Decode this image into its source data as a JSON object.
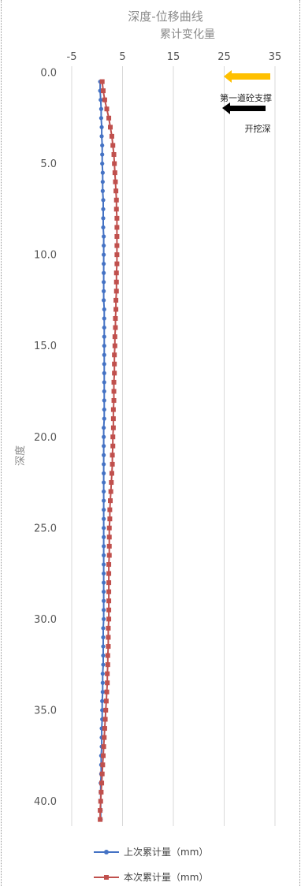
{
  "chart_data": {
    "type": "line",
    "title": "深度-位移曲线",
    "xlabel": "累计变化量",
    "ylabel": "深度",
    "x_ticks": [
      "-5",
      "5",
      "15",
      "25",
      "35"
    ],
    "x_tick_values": [
      -5,
      5,
      15,
      25,
      35
    ],
    "xlim": [
      -5,
      35
    ],
    "y_ticks": [
      "0.0",
      "5.0",
      "10.0",
      "15.0",
      "20.0",
      "25.0",
      "30.0",
      "35.0",
      "40.0"
    ],
    "y_tick_values": [
      0,
      5,
      10,
      15,
      20,
      25,
      30,
      35,
      40
    ],
    "ylim": [
      0,
      41
    ],
    "y_inverted": true,
    "grid": "vertical",
    "depth": [
      0.5,
      1.0,
      1.5,
      2.0,
      2.5,
      3.0,
      3.5,
      4.0,
      4.5,
      5.0,
      5.5,
      6.0,
      6.5,
      7.0,
      7.5,
      8.0,
      8.5,
      9.0,
      9.5,
      10.0,
      10.5,
      11.0,
      11.5,
      12.0,
      12.5,
      13.0,
      13.5,
      14.0,
      14.5,
      15.0,
      15.5,
      16.0,
      16.5,
      17.0,
      17.5,
      18.0,
      18.5,
      19.0,
      19.5,
      20.0,
      20.5,
      21.0,
      21.5,
      22.0,
      22.5,
      23.0,
      23.5,
      24.0,
      24.5,
      25.0,
      25.5,
      26.0,
      26.5,
      27.0,
      27.5,
      28.0,
      28.5,
      29.0,
      29.5,
      30.0,
      30.5,
      31.0,
      31.5,
      32.0,
      32.5,
      33.0,
      33.5,
      34.0,
      34.5,
      35.0,
      35.5,
      36.0,
      36.5,
      37.0,
      37.5,
      38.0,
      38.5,
      39.0,
      39.5,
      40.0,
      40.5,
      41.0
    ],
    "series": [
      {
        "name": "上次累计量（mm）",
        "color": "#4472c4",
        "marker": "circle",
        "values": [
          0.6,
          0.6,
          0.7,
          0.8,
          0.8,
          0.9,
          0.9,
          1.0,
          1.0,
          1.0,
          1.1,
          1.1,
          1.1,
          1.2,
          1.2,
          1.2,
          1.2,
          1.3,
          1.3,
          1.3,
          1.3,
          1.3,
          1.3,
          1.3,
          1.3,
          1.4,
          1.4,
          1.4,
          1.4,
          1.4,
          1.4,
          1.4,
          1.4,
          1.4,
          1.4,
          1.4,
          1.4,
          1.4,
          1.3,
          1.3,
          1.3,
          1.3,
          1.3,
          1.3,
          1.3,
          1.3,
          1.3,
          1.3,
          1.3,
          1.3,
          1.3,
          1.3,
          1.3,
          1.3,
          1.3,
          1.3,
          1.3,
          1.3,
          1.3,
          1.3,
          1.2,
          1.2,
          1.2,
          1.2,
          1.2,
          1.1,
          1.1,
          1.1,
          1.0,
          1.0,
          1.0,
          0.9,
          0.9,
          0.9,
          0.8,
          0.8,
          0.8,
          0.7,
          0.7,
          0.7,
          0.7,
          0.7
        ]
      },
      {
        "name": "本次累计量（mm）",
        "color": "#c0504d",
        "marker": "square",
        "values": [
          1.0,
          1.2,
          1.5,
          1.9,
          2.3,
          2.6,
          2.9,
          3.1,
          3.3,
          3.4,
          3.5,
          3.6,
          3.7,
          3.8,
          3.8,
          3.9,
          3.9,
          3.9,
          3.9,
          3.9,
          3.9,
          3.8,
          3.8,
          3.8,
          3.7,
          3.7,
          3.6,
          3.6,
          3.5,
          3.5,
          3.4,
          3.4,
          3.4,
          3.3,
          3.3,
          3.3,
          3.2,
          3.2,
          3.2,
          3.1,
          3.1,
          3.0,
          3.0,
          2.9,
          2.8,
          2.7,
          2.6,
          2.5,
          2.5,
          2.4,
          2.4,
          2.4,
          2.4,
          2.3,
          2.3,
          2.3,
          2.3,
          2.3,
          2.3,
          2.3,
          2.2,
          2.2,
          2.2,
          2.1,
          2.1,
          2.0,
          2.0,
          1.9,
          1.8,
          1.7,
          1.6,
          1.5,
          1.4,
          1.3,
          1.2,
          1.1,
          1.0,
          0.9,
          0.8,
          0.7,
          0.6,
          0.6
        ]
      }
    ],
    "annotations": [
      {
        "text": "第一道砼支撑",
        "arrow_color": "#ffc000",
        "depth": 0.2
      },
      {
        "text": "开挖深",
        "arrow_color": "#000000",
        "depth": 1.9
      }
    ],
    "legend_position": "bottom"
  }
}
